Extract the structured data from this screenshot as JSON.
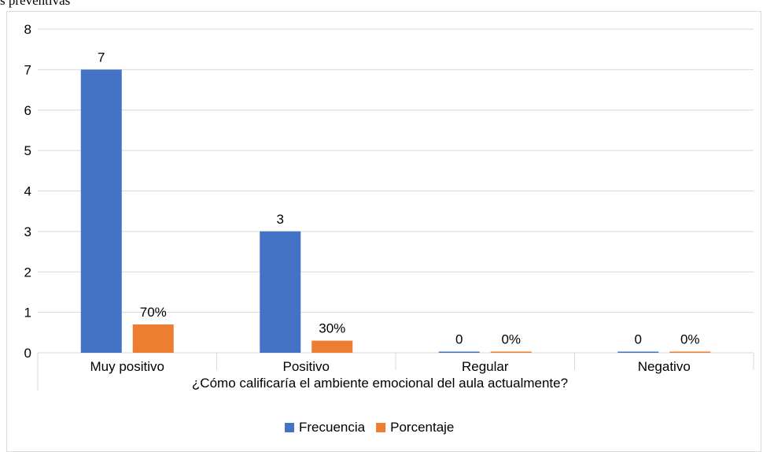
{
  "caption": "s preventivas",
  "colors": {
    "series1": "#4472c4",
    "series2": "#ed7d31",
    "grid": "#d9d9d9",
    "axis": "#d9d9d9"
  },
  "chart_data": {
    "type": "bar",
    "title": "",
    "xlabel": "¿Cómo calificaría el ambiente emocional del aula actualmente?",
    "ylabel": "",
    "ylim": [
      0,
      8
    ],
    "yticks": [
      0,
      1,
      2,
      3,
      4,
      5,
      6,
      7,
      8
    ],
    "grid": true,
    "legend_position": "bottom",
    "categories": [
      "Muy positivo",
      "Positivo",
      "Regular",
      "Negativo"
    ],
    "series": [
      {
        "name": "Frecuencia",
        "values": [
          7,
          3,
          0,
          0
        ],
        "labels": [
          "7",
          "3",
          "0",
          "0"
        ]
      },
      {
        "name": "Porcentaje",
        "values": [
          0.7,
          0.3,
          0,
          0
        ],
        "labels": [
          "70%",
          "30%",
          "0%",
          "0%"
        ]
      }
    ]
  }
}
